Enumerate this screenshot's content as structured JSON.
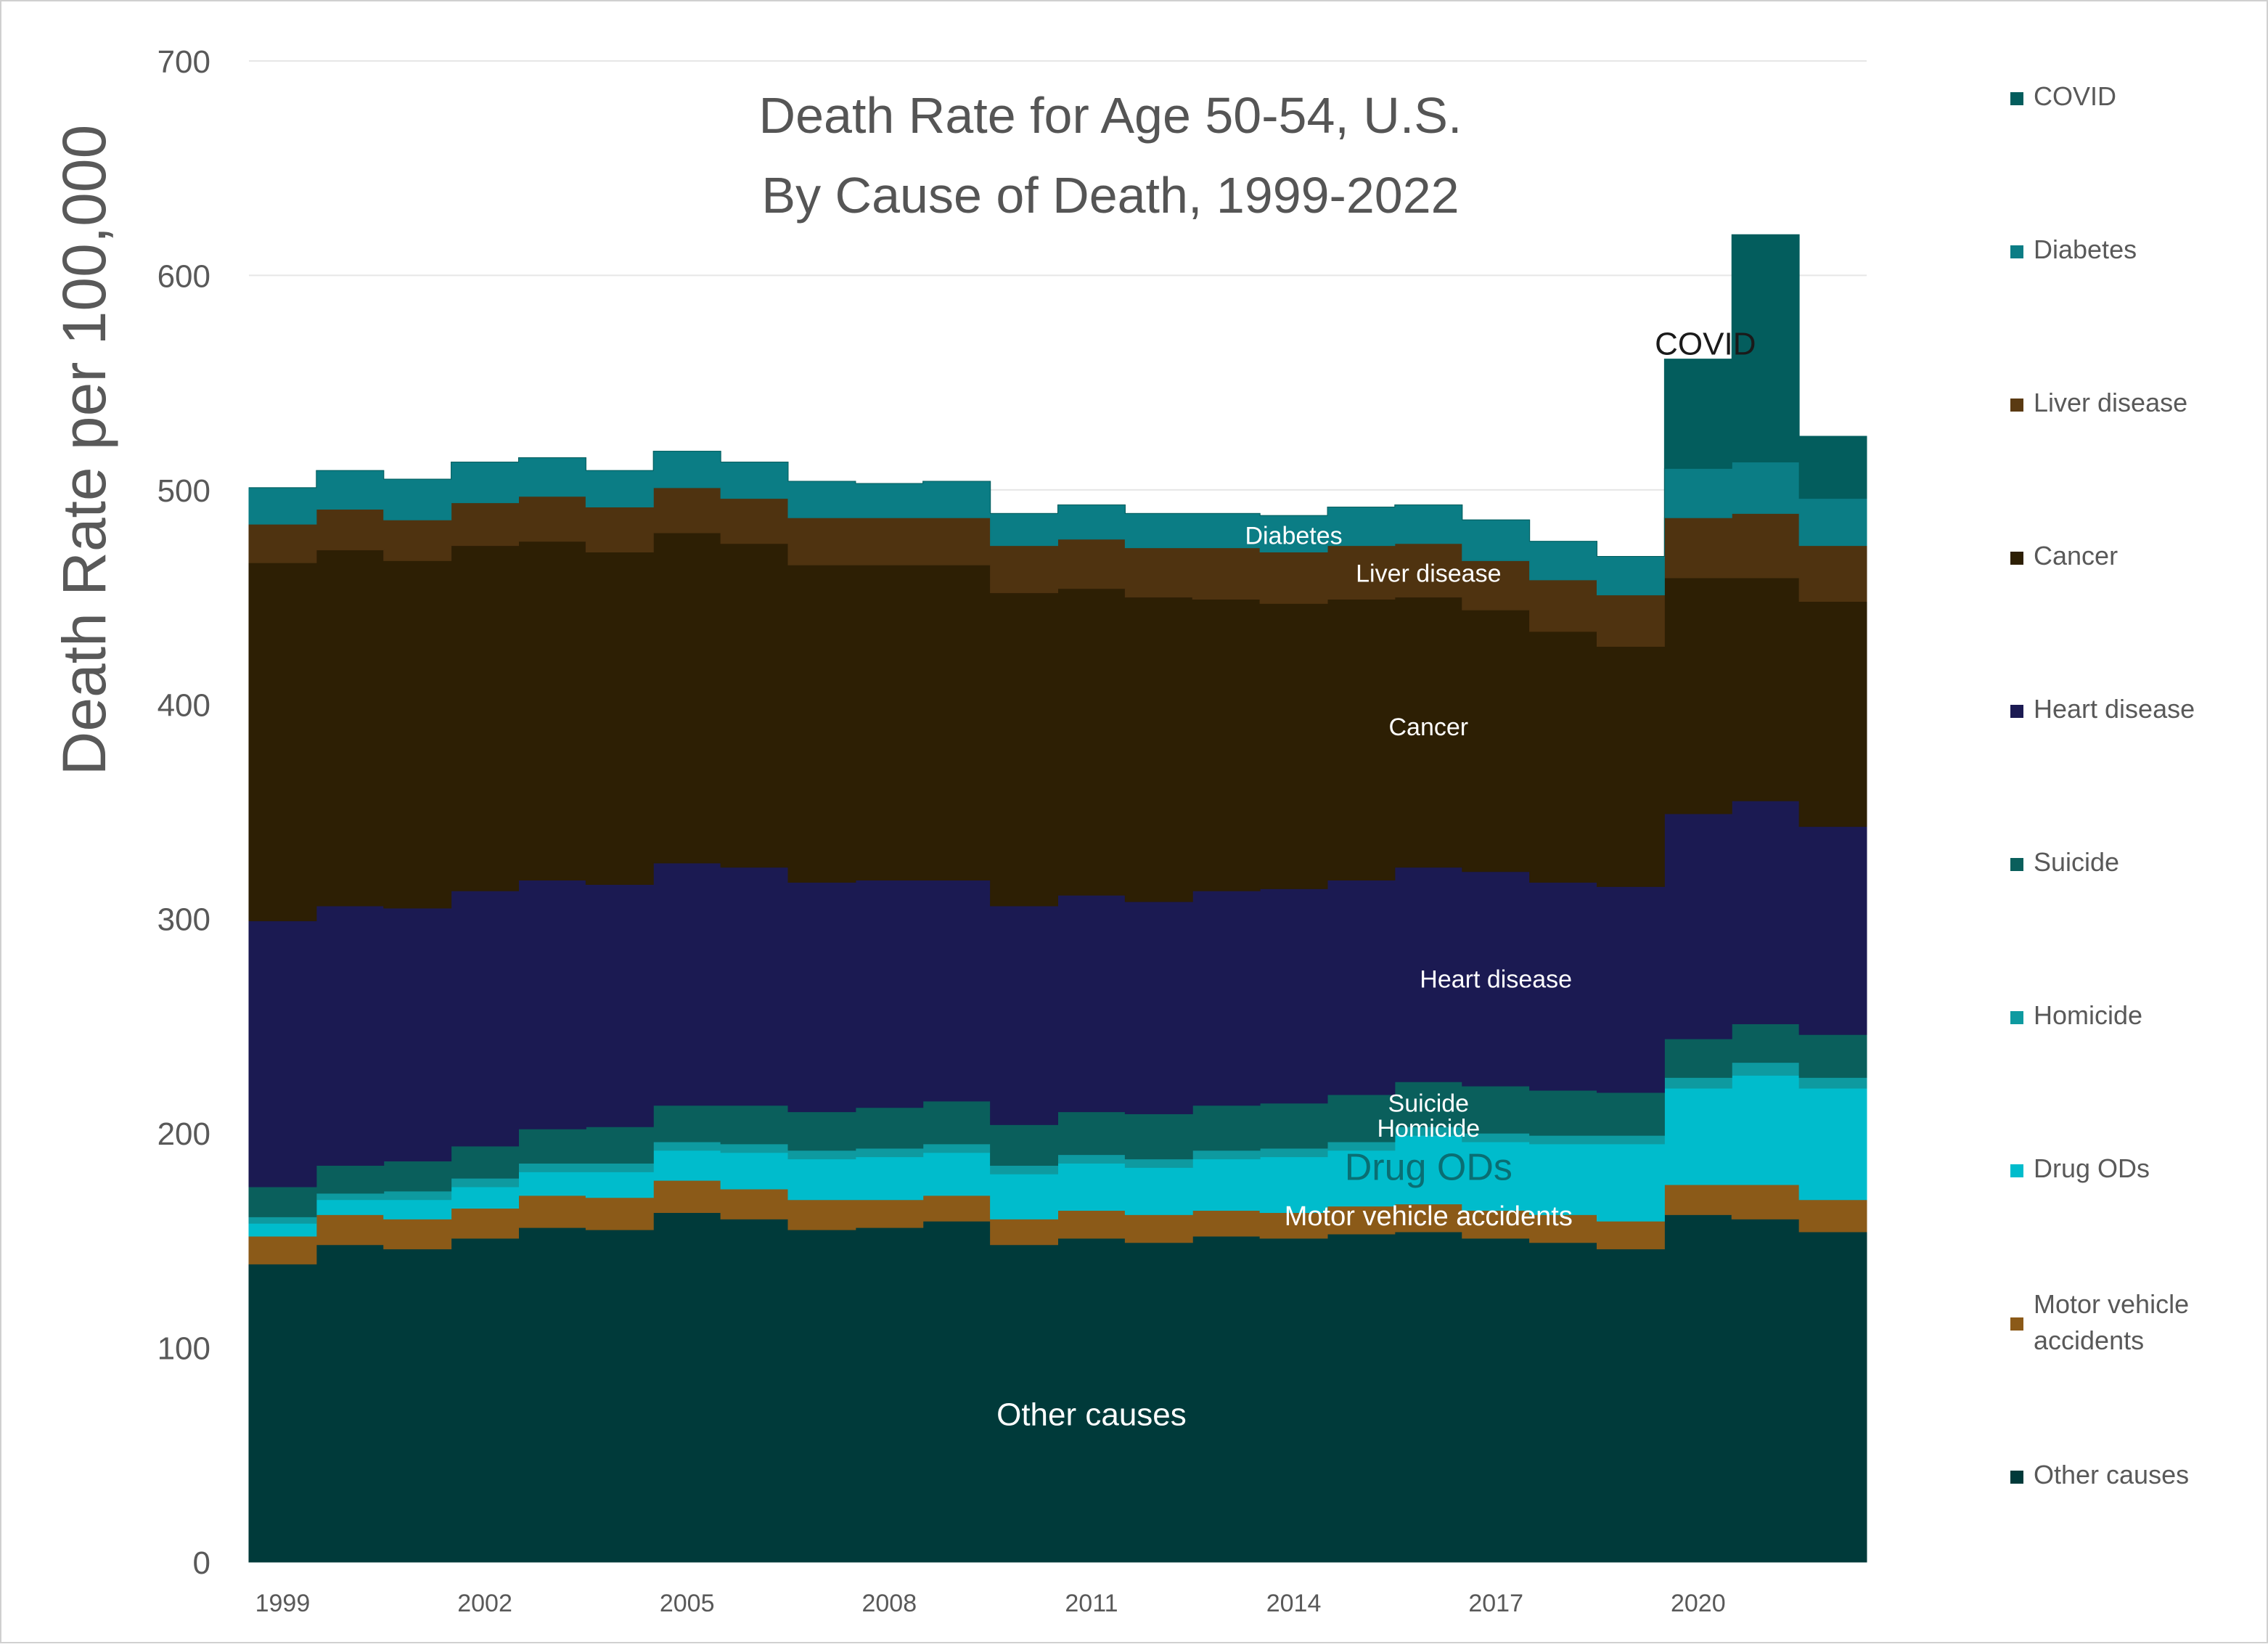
{
  "chart_data": {
    "type": "area",
    "title": "Death Rate for Age 50-54, U.S.",
    "subtitle": "By Cause of Death, 1999-2022",
    "xlabel": "",
    "ylabel": "Death Rate per 100,000",
    "ylim": [
      0,
      700
    ],
    "y_ticks": [
      "0",
      "100",
      "200",
      "300",
      "400",
      "500",
      "600",
      "700"
    ],
    "x_ticks": [
      "1999",
      "2002",
      "2005",
      "2008",
      "2011",
      "2014",
      "2017",
      "2020"
    ],
    "grid": true,
    "legend_position": "right",
    "x": [
      1999,
      2000,
      2001,
      2002,
      2003,
      2004,
      2005,
      2006,
      2007,
      2008,
      2009,
      2010,
      2011,
      2012,
      2013,
      2014,
      2015,
      2016,
      2017,
      2018,
      2019,
      2020,
      2021,
      2022
    ],
    "series": [
      {
        "name": "Other causes",
        "color": "#003a3a",
        "label": "Other causes",
        "values": [
          139,
          148,
          146,
          151,
          156,
          155,
          163,
          160,
          155,
          156,
          159,
          148,
          151,
          149,
          152,
          151,
          153,
          154,
          151,
          149,
          146,
          162,
          160,
          154
        ]
      },
      {
        "name": "Motor vehicle accidents",
        "color": "#8b5a18",
        "label": "Motor vehicle accidents",
        "values": [
          13,
          14,
          14,
          14,
          15,
          15,
          15,
          14,
          14,
          13,
          12,
          12,
          13,
          13,
          12,
          12,
          13,
          13,
          13,
          13,
          13,
          14,
          16,
          15
        ]
      },
      {
        "name": "Drug ODs",
        "color": "#00bccc",
        "label": "Drug ODs",
        "values": [
          6,
          7,
          9,
          10,
          11,
          12,
          14,
          17,
          19,
          20,
          20,
          21,
          22,
          22,
          24,
          26,
          26,
          32,
          32,
          33,
          36,
          45,
          51,
          52
        ]
      },
      {
        "name": "Homicide",
        "color": "#0e9aa0",
        "label": "Homicide",
        "values": [
          3,
          3,
          4,
          4,
          4,
          4,
          4,
          4,
          4,
          4,
          4,
          4,
          4,
          4,
          4,
          4,
          4,
          4,
          4,
          4,
          4,
          5,
          6,
          5
        ]
      },
      {
        "name": "Suicide",
        "color": "#0a5f5c",
        "label": "Suicide",
        "values": [
          14,
          13,
          14,
          15,
          16,
          17,
          17,
          18,
          18,
          19,
          20,
          19,
          20,
          21,
          21,
          21,
          22,
          21,
          22,
          21,
          20,
          18,
          18,
          20
        ]
      },
      {
        "name": "Heart disease",
        "color": "#1b1a52",
        "label": "Heart disease",
        "values": [
          124,
          121,
          118,
          119,
          116,
          113,
          113,
          111,
          107,
          106,
          103,
          102,
          101,
          99,
          100,
          100,
          100,
          100,
          100,
          97,
          96,
          105,
          104,
          97
        ]
      },
      {
        "name": "Cancer",
        "color": "#2d1f04",
        "label": "Cancer",
        "values": [
          167,
          166,
          162,
          161,
          158,
          155,
          154,
          151,
          148,
          147,
          147,
          146,
          143,
          142,
          136,
          133,
          131,
          126,
          122,
          117,
          112,
          110,
          104,
          105
        ]
      },
      {
        "name": "Liver disease",
        "color": "#4f3310",
        "label": "Liver disease",
        "values": [
          18,
          19,
          19,
          20,
          21,
          21,
          21,
          21,
          22,
          22,
          22,
          22,
          23,
          23,
          24,
          24,
          25,
          25,
          23,
          24,
          24,
          28,
          30,
          26
        ]
      },
      {
        "name": "Diabetes",
        "color": "#0b7d85",
        "label": "Diabetes",
        "values": [
          17,
          18,
          19,
          19,
          18,
          17,
          17,
          17,
          17,
          16,
          17,
          15,
          16,
          16,
          16,
          17,
          18,
          18,
          19,
          18,
          18,
          23,
          24,
          22
        ]
      },
      {
        "name": "COVID",
        "color": "#035d5d",
        "label": "COVID",
        "values": [
          0,
          0,
          0,
          0,
          0,
          0,
          0,
          0,
          0,
          0,
          0,
          0,
          0,
          0,
          0,
          0,
          0,
          0,
          0,
          0,
          0,
          51,
          106,
          29
        ]
      }
    ],
    "legend": [
      {
        "label": "COVID",
        "color": "#035d5d"
      },
      {
        "label": "Diabetes",
        "color": "#0b7d85"
      },
      {
        "label": "Liver disease",
        "color": "#5a3a12"
      },
      {
        "label": "Cancer",
        "color": "#2d1f04"
      },
      {
        "label": "Heart disease",
        "color": "#1b1a52"
      },
      {
        "label": "Suicide",
        "color": "#0a5f5c"
      },
      {
        "label": "Homicide",
        "color": "#0e9aa0"
      },
      {
        "label": "Drug ODs",
        "color": "#00bccc"
      },
      {
        "label": "Motor vehicle accidents",
        "color": "#8b5a18"
      },
      {
        "label": "Other causes",
        "color": "#003a3a"
      }
    ]
  }
}
